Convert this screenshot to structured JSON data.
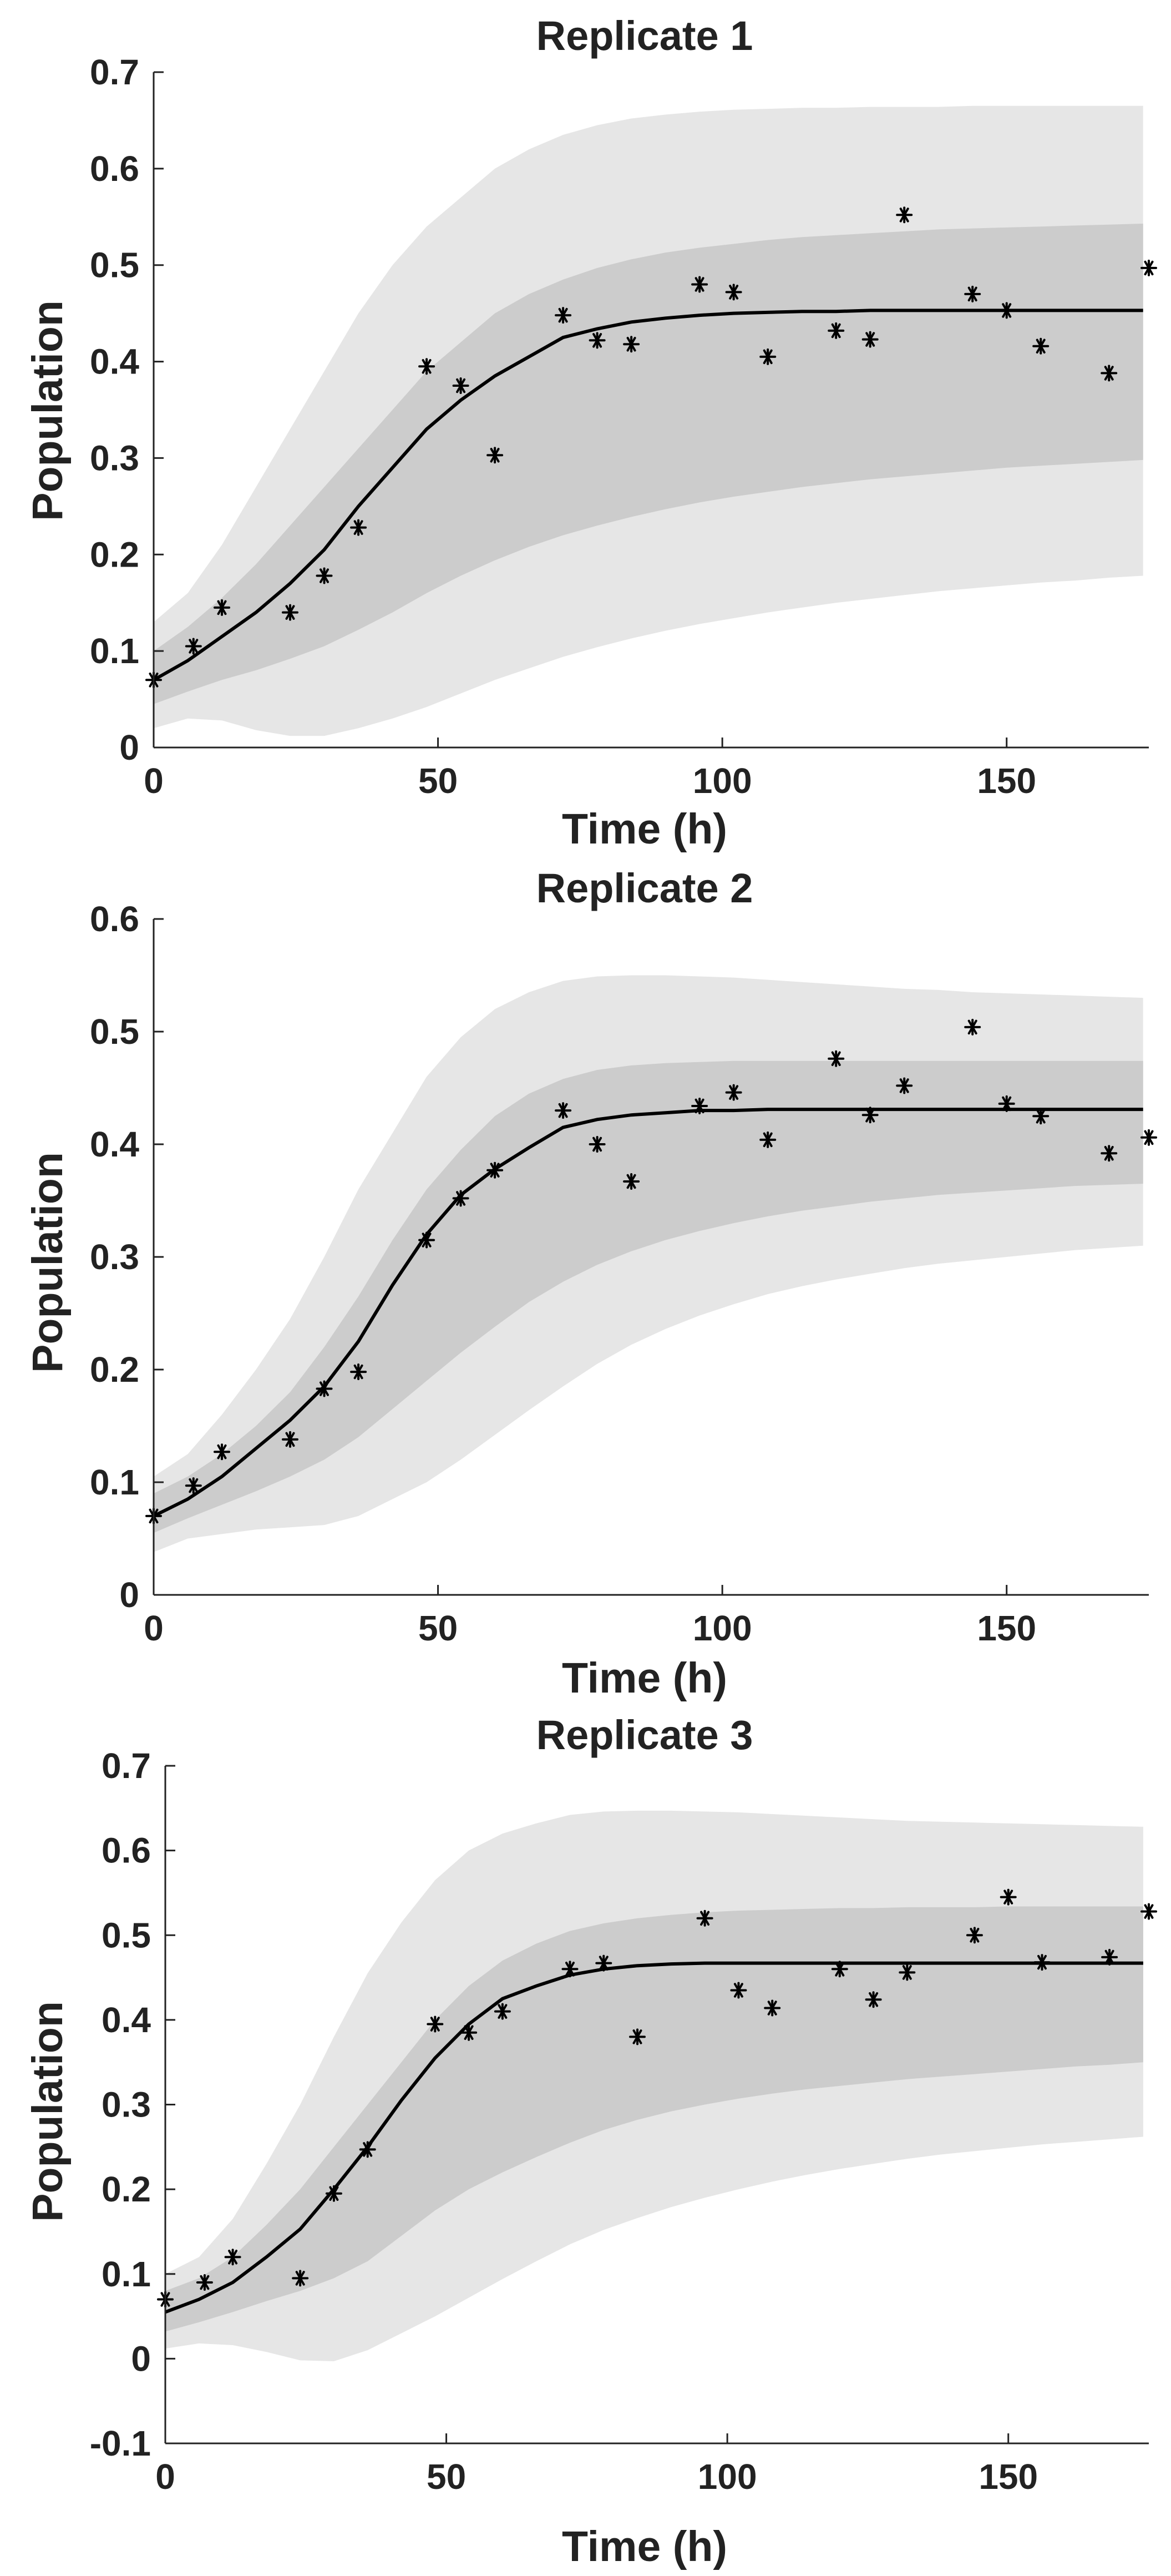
{
  "chart_data": [
    {
      "type": "line",
      "title": "Replicate 1",
      "xlabel": "Time (h)",
      "ylabel": "Population",
      "xlim": [
        0,
        175
      ],
      "ylim": [
        0,
        0.7
      ],
      "xticks": [
        0,
        50,
        100,
        150
      ],
      "xtick_labels": [
        "0",
        "50",
        "100",
        "150"
      ],
      "yticks": [
        0,
        0.1,
        0.2,
        0.3,
        0.4,
        0.5,
        0.6,
        0.7
      ],
      "ytick_labels": [
        "0",
        "0.1",
        "0.2",
        "0.3",
        "0.4",
        "0.5",
        "0.6",
        "0.7"
      ],
      "grid": false,
      "colors": {
        "outer_band": "#e6e6e6",
        "inner_band": "#cccccc",
        "line": "#000000",
        "markers": "#000000"
      },
      "x": [
        0,
        6,
        12,
        18,
        24,
        30,
        36,
        42,
        48,
        54,
        60,
        66,
        72,
        78,
        84,
        90,
        96,
        102,
        108,
        114,
        120,
        126,
        132,
        138,
        144,
        150,
        156,
        162,
        168,
        174
      ],
      "series": [
        {
          "name": "outer band upper",
          "values": [
            0.13,
            0.16,
            0.21,
            0.27,
            0.33,
            0.39,
            0.45,
            0.5,
            0.54,
            0.57,
            0.6,
            0.62,
            0.635,
            0.645,
            0.652,
            0.656,
            0.659,
            0.661,
            0.662,
            0.663,
            0.663,
            0.664,
            0.664,
            0.664,
            0.665,
            0.665,
            0.665,
            0.665,
            0.665,
            0.665
          ]
        },
        {
          "name": "outer band lower",
          "values": [
            0.02,
            0.03,
            0.028,
            0.018,
            0.012,
            0.012,
            0.02,
            0.03,
            0.042,
            0.056,
            0.07,
            0.082,
            0.094,
            0.104,
            0.113,
            0.121,
            0.128,
            0.134,
            0.14,
            0.145,
            0.15,
            0.154,
            0.158,
            0.162,
            0.165,
            0.168,
            0.171,
            0.173,
            0.176,
            0.178
          ]
        },
        {
          "name": "inner band upper",
          "values": [
            0.1,
            0.125,
            0.155,
            0.19,
            0.23,
            0.27,
            0.31,
            0.35,
            0.39,
            0.42,
            0.45,
            0.47,
            0.485,
            0.497,
            0.506,
            0.513,
            0.518,
            0.522,
            0.526,
            0.529,
            0.531,
            0.533,
            0.535,
            0.537,
            0.538,
            0.539,
            0.54,
            0.541,
            0.542,
            0.543
          ]
        },
        {
          "name": "inner band lower",
          "values": [
            0.045,
            0.058,
            0.07,
            0.08,
            0.092,
            0.105,
            0.122,
            0.14,
            0.16,
            0.178,
            0.194,
            0.208,
            0.22,
            0.23,
            0.239,
            0.247,
            0.254,
            0.26,
            0.265,
            0.27,
            0.274,
            0.278,
            0.281,
            0.284,
            0.287,
            0.29,
            0.292,
            0.294,
            0.296,
            0.298
          ]
        },
        {
          "name": "model mean",
          "values": [
            0.07,
            0.09,
            0.115,
            0.14,
            0.17,
            0.205,
            0.25,
            0.29,
            0.33,
            0.36,
            0.385,
            0.405,
            0.425,
            0.434,
            0.441,
            0.445,
            0.448,
            0.45,
            0.451,
            0.452,
            0.452,
            0.453,
            0.453,
            0.453,
            0.453,
            0.453,
            0.453,
            0.453,
            0.453,
            0.453
          ]
        }
      ],
      "observations": {
        "x": [
          0,
          7,
          12,
          24,
          30,
          36,
          48,
          54,
          60,
          72,
          78,
          84,
          96,
          102,
          108,
          120,
          126,
          132,
          144,
          150,
          156,
          168,
          175
        ],
        "y": [
          0.07,
          0.105,
          0.145,
          0.14,
          0.178,
          0.228,
          0.395,
          0.375,
          0.303,
          0.448,
          0.422,
          0.418,
          0.48,
          0.472,
          0.405,
          0.432,
          0.423,
          0.552,
          0.47,
          0.453,
          0.416,
          0.388,
          0.497
        ]
      }
    },
    {
      "type": "line",
      "title": "Replicate 2",
      "xlabel": "Time (h)",
      "ylabel": "Population",
      "xlim": [
        0,
        175
      ],
      "ylim": [
        0,
        0.6
      ],
      "xticks": [
        0,
        50,
        100,
        150
      ],
      "xtick_labels": [
        "0",
        "50",
        "100",
        "150"
      ],
      "yticks": [
        0,
        0.1,
        0.2,
        0.3,
        0.4,
        0.5,
        0.6
      ],
      "ytick_labels": [
        "0",
        "0.1",
        "0.2",
        "0.3",
        "0.4",
        "0.5",
        "0.6"
      ],
      "grid": false,
      "colors": {
        "outer_band": "#e6e6e6",
        "inner_band": "#cccccc",
        "line": "#000000",
        "markers": "#000000"
      },
      "x": [
        0,
        6,
        12,
        18,
        24,
        30,
        36,
        42,
        48,
        54,
        60,
        66,
        72,
        78,
        84,
        90,
        96,
        102,
        108,
        114,
        120,
        126,
        132,
        138,
        144,
        150,
        156,
        162,
        168,
        174
      ],
      "series": [
        {
          "name": "outer band upper",
          "values": [
            0.105,
            0.125,
            0.16,
            0.2,
            0.245,
            0.3,
            0.36,
            0.41,
            0.46,
            0.495,
            0.52,
            0.535,
            0.545,
            0.549,
            0.55,
            0.55,
            0.549,
            0.548,
            0.546,
            0.544,
            0.542,
            0.54,
            0.538,
            0.537,
            0.535,
            0.534,
            0.533,
            0.532,
            0.531,
            0.53
          ]
        },
        {
          "name": "outer band lower",
          "values": [
            0.038,
            0.05,
            0.054,
            0.058,
            0.06,
            0.062,
            0.07,
            0.085,
            0.1,
            0.12,
            0.142,
            0.164,
            0.185,
            0.205,
            0.222,
            0.236,
            0.248,
            0.258,
            0.267,
            0.274,
            0.28,
            0.285,
            0.29,
            0.294,
            0.297,
            0.3,
            0.303,
            0.306,
            0.308,
            0.31
          ]
        },
        {
          "name": "inner band upper",
          "values": [
            0.09,
            0.105,
            0.125,
            0.15,
            0.18,
            0.22,
            0.265,
            0.315,
            0.36,
            0.395,
            0.425,
            0.445,
            0.458,
            0.466,
            0.47,
            0.472,
            0.473,
            0.474,
            0.474,
            0.474,
            0.474,
            0.474,
            0.474,
            0.474,
            0.474,
            0.474,
            0.474,
            0.474,
            0.474,
            0.474
          ]
        },
        {
          "name": "inner band lower",
          "values": [
            0.055,
            0.068,
            0.08,
            0.092,
            0.105,
            0.12,
            0.14,
            0.165,
            0.19,
            0.215,
            0.238,
            0.26,
            0.278,
            0.293,
            0.305,
            0.315,
            0.323,
            0.33,
            0.336,
            0.341,
            0.345,
            0.349,
            0.352,
            0.355,
            0.357,
            0.359,
            0.361,
            0.363,
            0.364,
            0.365
          ]
        },
        {
          "name": "model mean",
          "values": [
            0.07,
            0.085,
            0.105,
            0.13,
            0.155,
            0.185,
            0.225,
            0.275,
            0.32,
            0.355,
            0.378,
            0.397,
            0.415,
            0.422,
            0.426,
            0.428,
            0.43,
            0.43,
            0.431,
            0.431,
            0.431,
            0.431,
            0.431,
            0.431,
            0.431,
            0.431,
            0.431,
            0.431,
            0.431,
            0.431
          ]
        }
      ],
      "observations": {
        "x": [
          0,
          7,
          12,
          24,
          30,
          36,
          48,
          54,
          60,
          72,
          78,
          84,
          96,
          102,
          108,
          120,
          126,
          132,
          144,
          150,
          156,
          168,
          175
        ],
        "y": [
          0.07,
          0.097,
          0.127,
          0.138,
          0.183,
          0.198,
          0.315,
          0.352,
          0.377,
          0.43,
          0.4,
          0.367,
          0.434,
          0.446,
          0.404,
          0.476,
          0.426,
          0.452,
          0.504,
          0.436,
          0.425,
          0.392,
          0.406
        ]
      }
    },
    {
      "type": "line",
      "title": "Replicate 3",
      "xlabel": "Time (h)",
      "ylabel": "Population",
      "xlim": [
        0,
        175
      ],
      "ylim": [
        -0.1,
        0.7
      ],
      "xticks": [
        0,
        50,
        100,
        150
      ],
      "xtick_labels": [
        "0",
        "50",
        "100",
        "150"
      ],
      "yticks": [
        -0.1,
        0,
        0.1,
        0.2,
        0.3,
        0.4,
        0.5,
        0.6,
        0.7
      ],
      "ytick_labels": [
        "-0.1",
        "0",
        "0.1",
        "0.2",
        "0.3",
        "0.4",
        "0.5",
        "0.6",
        "0.7"
      ],
      "grid": false,
      "colors": {
        "outer_band": "#e6e6e6",
        "inner_band": "#cccccc",
        "line": "#000000",
        "markers": "#000000"
      },
      "x": [
        0,
        6,
        12,
        18,
        24,
        30,
        36,
        42,
        48,
        54,
        60,
        66,
        72,
        78,
        84,
        90,
        96,
        102,
        108,
        114,
        120,
        126,
        132,
        138,
        144,
        150,
        156,
        162,
        168,
        174
      ],
      "series": [
        {
          "name": "outer band upper",
          "values": [
            0.1,
            0.12,
            0.165,
            0.23,
            0.3,
            0.38,
            0.455,
            0.515,
            0.565,
            0.6,
            0.62,
            0.632,
            0.642,
            0.646,
            0.647,
            0.647,
            0.646,
            0.645,
            0.643,
            0.641,
            0.639,
            0.637,
            0.635,
            0.634,
            0.633,
            0.632,
            0.631,
            0.63,
            0.629,
            0.628
          ]
        },
        {
          "name": "outer band lower",
          "values": [
            0.012,
            0.018,
            0.016,
            0.008,
            -0.002,
            -0.003,
            0.01,
            0.03,
            0.05,
            0.072,
            0.094,
            0.115,
            0.135,
            0.152,
            0.166,
            0.179,
            0.19,
            0.2,
            0.209,
            0.217,
            0.224,
            0.23,
            0.236,
            0.241,
            0.245,
            0.249,
            0.253,
            0.256,
            0.259,
            0.262
          ]
        },
        {
          "name": "inner band upper",
          "values": [
            0.08,
            0.095,
            0.12,
            0.158,
            0.2,
            0.25,
            0.3,
            0.35,
            0.4,
            0.44,
            0.47,
            0.49,
            0.505,
            0.514,
            0.52,
            0.524,
            0.527,
            0.529,
            0.53,
            0.531,
            0.532,
            0.532,
            0.533,
            0.533,
            0.533,
            0.534,
            0.534,
            0.534,
            0.534,
            0.534
          ]
        },
        {
          "name": "inner band lower",
          "values": [
            0.032,
            0.043,
            0.055,
            0.068,
            0.08,
            0.095,
            0.115,
            0.145,
            0.175,
            0.2,
            0.22,
            0.238,
            0.255,
            0.27,
            0.282,
            0.292,
            0.3,
            0.307,
            0.313,
            0.318,
            0.322,
            0.326,
            0.33,
            0.333,
            0.336,
            0.339,
            0.342,
            0.345,
            0.347,
            0.35
          ]
        },
        {
          "name": "model mean",
          "values": [
            0.055,
            0.07,
            0.09,
            0.12,
            0.153,
            0.2,
            0.25,
            0.305,
            0.355,
            0.395,
            0.425,
            0.44,
            0.453,
            0.46,
            0.464,
            0.466,
            0.467,
            0.467,
            0.467,
            0.467,
            0.467,
            0.467,
            0.467,
            0.467,
            0.467,
            0.467,
            0.467,
            0.467,
            0.467,
            0.467
          ]
        }
      ],
      "observations": {
        "x": [
          0,
          7,
          12,
          24,
          30,
          36,
          48,
          54,
          60,
          72,
          78,
          84,
          96,
          102,
          108,
          120,
          126,
          132,
          144,
          150,
          156,
          168,
          175
        ],
        "y": [
          0.07,
          0.09,
          0.12,
          0.095,
          0.195,
          0.247,
          0.395,
          0.385,
          0.41,
          0.46,
          0.467,
          0.38,
          0.52,
          0.435,
          0.414,
          0.46,
          0.424,
          0.456,
          0.5,
          0.545,
          0.468,
          0.474,
          0.528
        ]
      }
    }
  ]
}
